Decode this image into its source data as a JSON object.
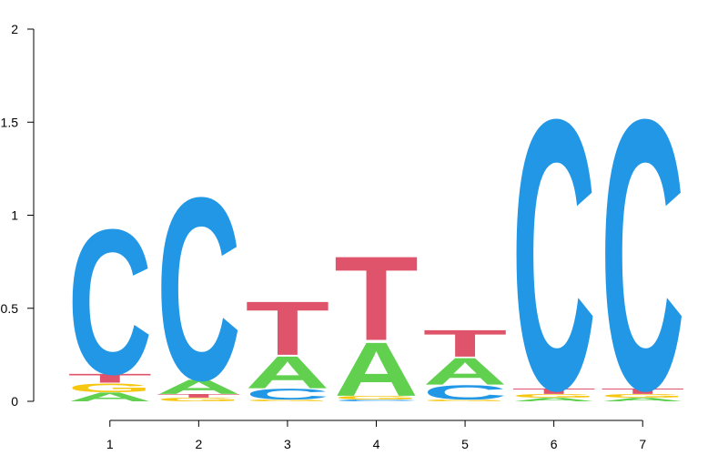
{
  "chart_data": {
    "type": "sequence-logo",
    "title": "",
    "xlabel": "",
    "ylabel": "",
    "ylim": [
      0,
      2
    ],
    "y_ticks": [
      "0",
      "0.5",
      "1",
      "1.5",
      "2"
    ],
    "positions": [
      "1",
      "2",
      "3",
      "4",
      "5",
      "6",
      "7"
    ],
    "colors": {
      "A": "#61D04F",
      "C": "#2297E6",
      "G": "#F5C710",
      "T": "#DF536B"
    },
    "stacks": [
      [
        {
          "letter": "A",
          "height": 0.05
        },
        {
          "letter": "G",
          "height": 0.05
        },
        {
          "letter": "T",
          "height": 0.05
        },
        {
          "letter": "C",
          "height": 0.81
        }
      ],
      [
        {
          "letter": "G",
          "height": 0.02
        },
        {
          "letter": "T",
          "height": 0.02
        },
        {
          "letter": "A",
          "height": 0.08
        },
        {
          "letter": "C",
          "height": 1.02
        }
      ],
      [
        {
          "letter": "G",
          "height": 0.01
        },
        {
          "letter": "C",
          "height": 0.06
        },
        {
          "letter": "A",
          "height": 0.18
        },
        {
          "letter": "T",
          "height": 0.3
        }
      ],
      [
        {
          "letter": "C",
          "height": 0.01
        },
        {
          "letter": "G",
          "height": 0.02
        },
        {
          "letter": "A",
          "height": 0.3
        },
        {
          "letter": "T",
          "height": 0.47
        }
      ],
      [
        {
          "letter": "G",
          "height": 0.01
        },
        {
          "letter": "C",
          "height": 0.08
        },
        {
          "letter": "A",
          "height": 0.15
        },
        {
          "letter": "T",
          "height": 0.15
        }
      ],
      [
        {
          "letter": "A",
          "height": 0.02
        },
        {
          "letter": "G",
          "height": 0.02
        },
        {
          "letter": "T",
          "height": 0.03
        },
        {
          "letter": "C",
          "height": 1.51
        }
      ],
      [
        {
          "letter": "A",
          "height": 0.02
        },
        {
          "letter": "G",
          "height": 0.02
        },
        {
          "letter": "T",
          "height": 0.03
        },
        {
          "letter": "C",
          "height": 1.51
        }
      ]
    ]
  }
}
